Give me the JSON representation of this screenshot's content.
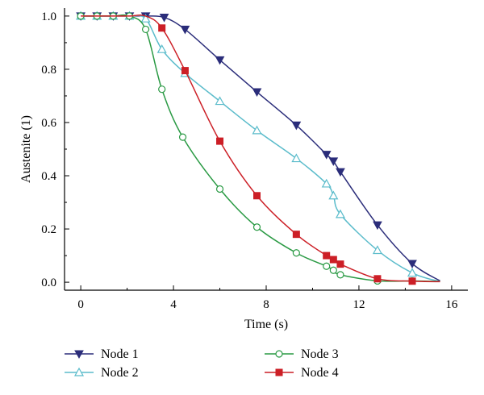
{
  "chart_data": {
    "type": "line",
    "xlabel": "Time (s)",
    "ylabel": "Austenite (1)",
    "xlim": [
      -0.7,
      16.7
    ],
    "ylim": [
      -0.03,
      1.03
    ],
    "xticks": [
      "0",
      "4",
      "8",
      "12",
      "16"
    ],
    "yticks": [
      "0.0",
      "0.2",
      "0.4",
      "0.6",
      "0.8",
      "1.0"
    ],
    "legend_position": "bottom",
    "series": [
      {
        "name": "Node 1",
        "color": "#2b2d7a",
        "marker": "triangle-down-filled",
        "curve_x": [
          0,
          0.7,
          1.4,
          2.1,
          2.8,
          3.6,
          4.5,
          6.0,
          7.6,
          9.3,
          10.6,
          10.9,
          11.2,
          12.8,
          14.3,
          15.5
        ],
        "curve_y": [
          1.0,
          1.0,
          1.0,
          1.0,
          1.0,
          0.995,
          0.95,
          0.835,
          0.715,
          0.59,
          0.48,
          0.455,
          0.415,
          0.215,
          0.07,
          0.005
        ],
        "marker_x": [
          0,
          0.7,
          1.4,
          2.1,
          2.8,
          3.6,
          4.5,
          6.0,
          7.6,
          9.3,
          10.6,
          10.9,
          11.2,
          12.8,
          14.3
        ],
        "marker_y": [
          1.0,
          1.0,
          1.0,
          1.0,
          1.0,
          0.995,
          0.95,
          0.835,
          0.715,
          0.59,
          0.48,
          0.455,
          0.415,
          0.215,
          0.07
        ]
      },
      {
        "name": "Node 2",
        "color": "#5bbccb",
        "marker": "triangle-up-open",
        "curve_x": [
          0,
          0.7,
          1.4,
          2.1,
          2.8,
          3.5,
          4.5,
          6.0,
          7.6,
          9.3,
          10.6,
          10.9,
          11.2,
          12.8,
          14.3,
          15.5
        ],
        "curve_y": [
          1.0,
          1.0,
          1.0,
          1.0,
          0.99,
          0.875,
          0.785,
          0.68,
          0.57,
          0.465,
          0.37,
          0.325,
          0.255,
          0.12,
          0.035,
          0.002
        ],
        "marker_x": [
          0,
          0.7,
          1.4,
          2.1,
          2.8,
          3.5,
          4.5,
          6.0,
          7.6,
          9.3,
          10.6,
          10.9,
          11.2,
          12.8,
          14.3
        ],
        "marker_y": [
          1.0,
          1.0,
          1.0,
          1.0,
          0.99,
          0.875,
          0.785,
          0.68,
          0.57,
          0.465,
          0.37,
          0.325,
          0.255,
          0.12,
          0.035
        ]
      },
      {
        "name": "Node 3",
        "color": "#2a9a44",
        "marker": "circle-open",
        "curve_x": [
          0,
          0.7,
          1.4,
          2.1,
          2.8,
          3.5,
          4.4,
          6.0,
          7.6,
          9.3,
          10.6,
          10.9,
          11.2,
          12.8,
          14.3,
          15.5
        ],
        "curve_y": [
          1.0,
          1.0,
          1.0,
          1.0,
          0.95,
          0.725,
          0.545,
          0.35,
          0.207,
          0.11,
          0.06,
          0.045,
          0.028,
          0.005,
          0.005,
          0.003
        ],
        "marker_x": [
          0,
          0.7,
          1.4,
          2.1,
          2.8,
          3.5,
          4.4,
          6.0,
          7.6,
          9.3,
          10.6,
          10.9,
          11.2,
          12.8,
          14.3
        ],
        "marker_y": [
          1.0,
          1.0,
          1.0,
          1.0,
          0.95,
          0.725,
          0.545,
          0.35,
          0.207,
          0.11,
          0.06,
          0.045,
          0.028,
          0.005,
          0.005
        ]
      },
      {
        "name": "Node 4",
        "color": "#cc1f26",
        "marker": "square-filled",
        "curve_x": [
          0,
          0.7,
          1.4,
          2.1,
          2.8,
          3.5,
          4.5,
          6.0,
          7.6,
          9.3,
          10.6,
          10.9,
          11.2,
          12.8,
          14.3,
          15.5
        ],
        "curve_y": [
          1.0,
          1.0,
          1.0,
          1.0,
          1.0,
          0.955,
          0.795,
          0.53,
          0.325,
          0.18,
          0.1,
          0.085,
          0.068,
          0.013,
          0.004,
          0.002
        ],
        "marker_x": [
          3.5,
          4.5,
          6.0,
          7.6,
          9.3,
          10.6,
          10.9,
          11.2,
          12.8,
          14.3
        ],
        "marker_y": [
          0.955,
          0.795,
          0.53,
          0.325,
          0.18,
          0.1,
          0.085,
          0.068,
          0.013,
          0.004
        ]
      }
    ]
  }
}
